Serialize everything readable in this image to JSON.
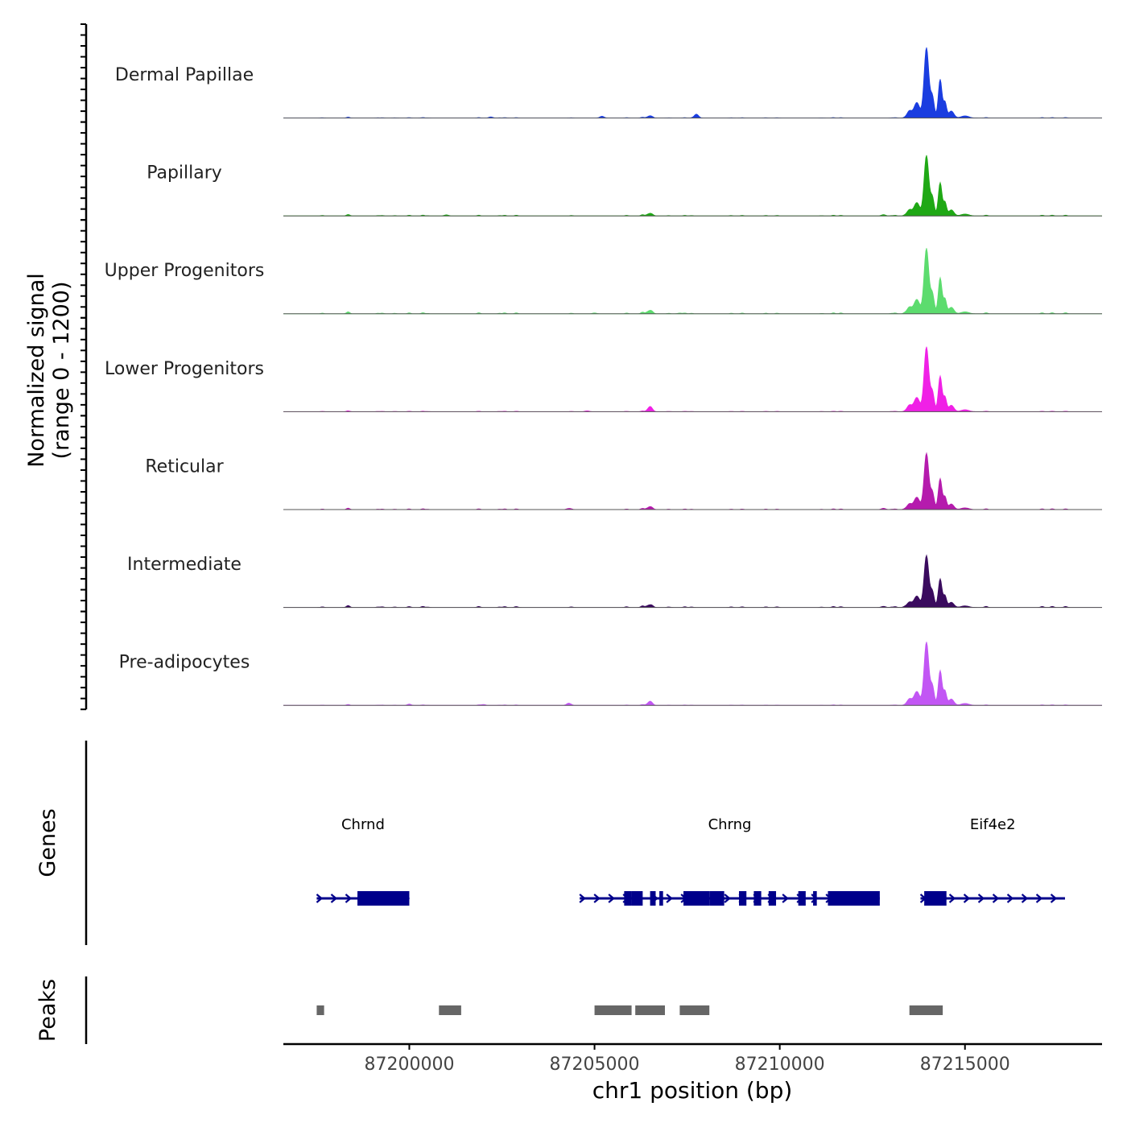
{
  "chart_data": {
    "type": "area",
    "title": "",
    "ylabel_line1": "Normalized signal",
    "ylabel_line2": "(range 0 - 1200)",
    "xlabel": "chr1 position (bp)",
    "xlim": [
      87196600,
      87218700
    ],
    "ylim": [
      0,
      1200
    ],
    "x_ticks": [
      87200000,
      87205000,
      87210000,
      87215000
    ],
    "x_tick_labels": [
      "87200000",
      "87205000",
      "87210000",
      "87215000"
    ],
    "peak_template": [
      {
        "pos": 87213500,
        "rel": 0.1,
        "width": 90
      },
      {
        "pos": 87213700,
        "rel": 0.22,
        "width": 110
      },
      {
        "pos": 87213960,
        "rel": 1.0,
        "width": 90
      },
      {
        "pos": 87214120,
        "rel": 0.3,
        "width": 70
      },
      {
        "pos": 87214330,
        "rel": 0.55,
        "width": 70
      },
      {
        "pos": 87214460,
        "rel": 0.22,
        "width": 60
      },
      {
        "pos": 87214630,
        "rel": 0.1,
        "width": 100
      },
      {
        "pos": 87215000,
        "rel": 0.03,
        "width": 150
      }
    ],
    "series": [
      {
        "name": "Dermal Papillae",
        "color": "#1a3de0",
        "peak_height": 1000,
        "minor": [
          [
            87207750,
            55
          ],
          [
            87206500,
            28
          ],
          [
            87205200,
            25
          ],
          [
            87202200,
            15
          ]
        ]
      },
      {
        "name": "Papillary",
        "color": "#1fa815",
        "peak_height": 860,
        "minor": [
          [
            87206500,
            30
          ],
          [
            87201000,
            15
          ],
          [
            87212800,
            18
          ]
        ]
      },
      {
        "name": "Upper Progenitors",
        "color": "#5cdc6e",
        "peak_height": 930,
        "minor": [
          [
            87206500,
            40
          ],
          [
            87205000,
            12
          ],
          [
            87207300,
            10
          ]
        ]
      },
      {
        "name": "Lower Progenitors",
        "color": "#f020e6",
        "peak_height": 920,
        "minor": [
          [
            87206500,
            70
          ],
          [
            87204800,
            12
          ]
        ]
      },
      {
        "name": "Reticular",
        "color": "#b51bad",
        "peak_height": 800,
        "minor": [
          [
            87206500,
            35
          ],
          [
            87204300,
            15
          ],
          [
            87212800,
            18
          ]
        ]
      },
      {
        "name": "Intermediate",
        "color": "#3a0b5e",
        "peak_height": 740,
        "minor": [
          [
            87206500,
            30
          ],
          [
            87212800,
            16
          ]
        ]
      },
      {
        "name": "Pre-adipocytes",
        "color": "#c256f4",
        "peak_height": 900,
        "minor": [
          [
            87206500,
            55
          ],
          [
            87204300,
            30
          ],
          [
            87200000,
            12
          ],
          [
            87202000,
            12
          ]
        ]
      }
    ],
    "gene_track_label": "Genes",
    "gene_color": "#00008b",
    "genes": [
      {
        "name": "Chrnd",
        "start": 87197500,
        "end": 87200000,
        "exons": [
          [
            87198600,
            87200000
          ]
        ]
      },
      {
        "name": "Chrng",
        "start": 87204600,
        "end": 87212700,
        "exons": [
          [
            87205800,
            87206000
          ],
          [
            87206000,
            87206300
          ],
          [
            87206500,
            87206650
          ],
          [
            87206750,
            87206850
          ],
          [
            87207400,
            87208100
          ],
          [
            87208100,
            87208500
          ],
          [
            87208900,
            87209100
          ],
          [
            87209300,
            87209500
          ],
          [
            87209700,
            87209900
          ],
          [
            87210500,
            87210700
          ],
          [
            87210900,
            87211000
          ],
          [
            87211300,
            87212700
          ]
        ]
      },
      {
        "name": "Eif4e2",
        "start": 87213800,
        "end": 87217700,
        "exons": [
          [
            87213900,
            87214500
          ]
        ]
      }
    ],
    "peak_track_label": "Peaks",
    "peak_color": "#666666",
    "peaks": [
      [
        87197500,
        87197700
      ],
      [
        87200800,
        87201400
      ],
      [
        87205000,
        87206000
      ],
      [
        87206100,
        87206900
      ],
      [
        87207300,
        87208100
      ],
      [
        87213500,
        87214400
      ]
    ]
  }
}
